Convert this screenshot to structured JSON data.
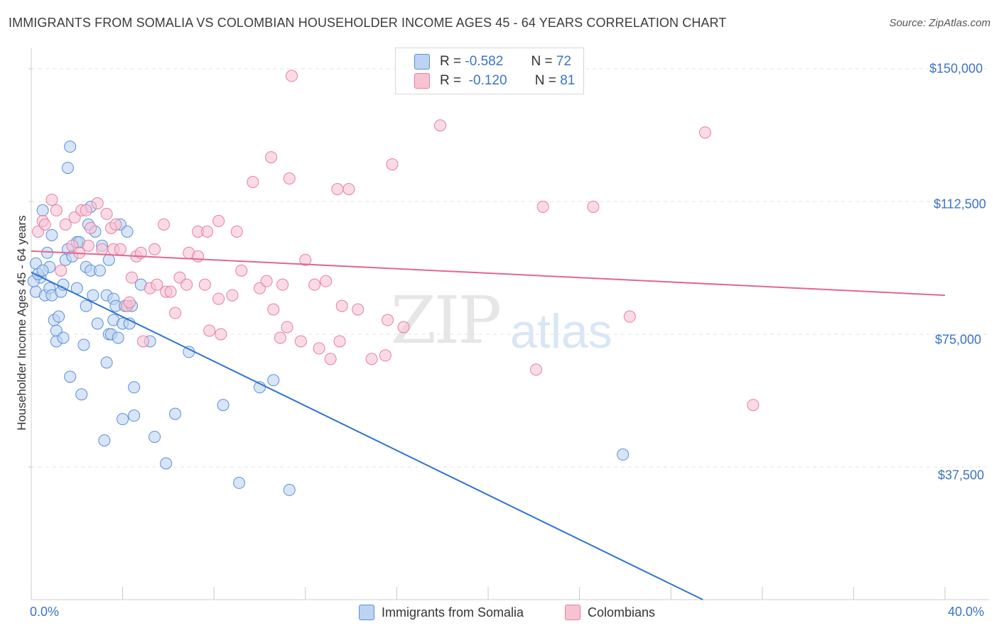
{
  "title": "IMMIGRANTS FROM SOMALIA VS COLOMBIAN HOUSEHOLDER INCOME AGES 45 - 64 YEARS CORRELATION CHART",
  "source": "Source: ZipAtlas.com",
  "watermark": {
    "zip": "ZIP",
    "atlas": "atlas"
  },
  "colors": {
    "somalia": "#5b8fd6",
    "somalia_fill": "#bcd3f2",
    "colombia": "#e57fa0",
    "colombia_fill": "#f7c3d3",
    "somalia_line": "#3173d1",
    "colombia_line": "#e26790",
    "accent": "#3b73c8"
  },
  "legend": {
    "rows": [
      {
        "r_label": "R =",
        "r_value": "-0.582",
        "n_label": "N =",
        "n_value": "72"
      },
      {
        "r_label": "R =",
        "r_value": "-0.120",
        "n_label": "N =",
        "n_value": "81"
      }
    ]
  },
  "bottom_legend": [
    {
      "label": "Immigrants from Somalia"
    },
    {
      "label": "Colombians"
    }
  ],
  "chart_data": {
    "type": "scatter",
    "title": "IMMIGRANTS FROM SOMALIA VS COLOMBIAN HOUSEHOLDER INCOME AGES 45 - 64 YEARS CORRELATION CHART",
    "xlabel": "",
    "ylabel": "Householder Income Ages 45 - 64 years",
    "xlim": [
      0,
      40
    ],
    "ylim": [
      0,
      155000
    ],
    "x_tick_labels": [
      "0.0%",
      "40.0%"
    ],
    "y_ticks": [
      37500,
      75000,
      112500,
      150000
    ],
    "y_tick_labels": [
      "$37,500",
      "$75,000",
      "$112,500",
      "$150,000"
    ],
    "grid": true,
    "legend_position": "top-center",
    "series": [
      {
        "name": "Immigrants from Somalia",
        "trend": {
          "x": [
            0,
            29.4
          ],
          "y": [
            92500,
            0
          ]
        },
        "points": [
          [
            0.2,
            95000
          ],
          [
            0.2,
            87000
          ],
          [
            0.4,
            91000
          ],
          [
            0.5,
            110000
          ],
          [
            0.6,
            86000
          ],
          [
            0.7,
            98000
          ],
          [
            0.8,
            94000
          ],
          [
            0.8,
            88000
          ],
          [
            0.9,
            103000
          ],
          [
            0.9,
            86000
          ],
          [
            1.0,
            79000
          ],
          [
            1.1,
            76000
          ],
          [
            1.2,
            80000
          ],
          [
            1.1,
            73000
          ],
          [
            1.3,
            87000
          ],
          [
            1.4,
            74000
          ],
          [
            1.4,
            89000
          ],
          [
            1.5,
            96000
          ],
          [
            1.6,
            99000
          ],
          [
            1.7,
            128000
          ],
          [
            1.6,
            122000
          ],
          [
            1.7,
            63000
          ],
          [
            1.8,
            97000
          ],
          [
            2.0,
            101000
          ],
          [
            2.0,
            88000
          ],
          [
            2.1,
            101000
          ],
          [
            2.2,
            58000
          ],
          [
            2.3,
            72000
          ],
          [
            2.4,
            83000
          ],
          [
            2.4,
            94000
          ],
          [
            2.5,
            106000
          ],
          [
            2.6,
            111000
          ],
          [
            2.6,
            93000
          ],
          [
            2.7,
            86000
          ],
          [
            2.8,
            104000
          ],
          [
            2.9,
            78000
          ],
          [
            3.0,
            93000
          ],
          [
            3.1,
            100000
          ],
          [
            3.2,
            45000
          ],
          [
            3.3,
            86000
          ],
          [
            3.3,
            67000
          ],
          [
            3.4,
            96000
          ],
          [
            3.4,
            75000
          ],
          [
            3.5,
            75000
          ],
          [
            3.6,
            85000
          ],
          [
            3.6,
            79000
          ],
          [
            3.7,
            83000
          ],
          [
            3.8,
            74000
          ],
          [
            3.9,
            106000
          ],
          [
            4.0,
            78000
          ],
          [
            4.0,
            51000
          ],
          [
            4.1,
            83000
          ],
          [
            4.2,
            104000
          ],
          [
            4.3,
            78000
          ],
          [
            4.4,
            83000
          ],
          [
            4.5,
            52000
          ],
          [
            4.5,
            60000
          ],
          [
            4.8,
            89000
          ],
          [
            5.2,
            73000
          ],
          [
            5.4,
            46000
          ],
          [
            5.9,
            38500
          ],
          [
            6.3,
            52500
          ],
          [
            6.9,
            70000
          ],
          [
            8.4,
            55000
          ],
          [
            9.1,
            33000
          ],
          [
            10.0,
            60000
          ],
          [
            10.6,
            62000
          ],
          [
            11.3,
            31000
          ],
          [
            25.9,
            41000
          ],
          [
            0.1,
            90000
          ],
          [
            0.3,
            92000
          ],
          [
            0.5,
            93000
          ]
        ]
      },
      {
        "name": "Colombians",
        "trend": {
          "x": [
            0,
            40
          ],
          "y": [
            98500,
            86000
          ]
        },
        "points": [
          [
            0.3,
            104000
          ],
          [
            0.5,
            107000
          ],
          [
            0.6,
            106000
          ],
          [
            0.9,
            113000
          ],
          [
            1.1,
            110000
          ],
          [
            1.3,
            93000
          ],
          [
            1.5,
            106000
          ],
          [
            1.8,
            100000
          ],
          [
            1.9,
            108000
          ],
          [
            2.1,
            98000
          ],
          [
            2.2,
            110000
          ],
          [
            2.4,
            110000
          ],
          [
            2.5,
            100000
          ],
          [
            2.6,
            105000
          ],
          [
            2.9,
            112000
          ],
          [
            3.1,
            99000
          ],
          [
            3.3,
            109000
          ],
          [
            3.5,
            105000
          ],
          [
            3.6,
            99000
          ],
          [
            3.7,
            106000
          ],
          [
            3.9,
            99000
          ],
          [
            4.2,
            83000
          ],
          [
            4.3,
            84000
          ],
          [
            4.4,
            91000
          ],
          [
            4.6,
            97000
          ],
          [
            4.8,
            98000
          ],
          [
            4.9,
            73000
          ],
          [
            5.2,
            88000
          ],
          [
            5.4,
            99000
          ],
          [
            5.5,
            89000
          ],
          [
            5.8,
            106000
          ],
          [
            5.9,
            87000
          ],
          [
            6.1,
            87000
          ],
          [
            6.3,
            81000
          ],
          [
            6.5,
            91000
          ],
          [
            6.8,
            89000
          ],
          [
            6.9,
            98000
          ],
          [
            7.3,
            97000
          ],
          [
            7.3,
            104000
          ],
          [
            7.6,
            89000
          ],
          [
            7.7,
            104000
          ],
          [
            7.8,
            76000
          ],
          [
            8.2,
            85000
          ],
          [
            8.2,
            107000
          ],
          [
            8.3,
            75000
          ],
          [
            8.8,
            86000
          ],
          [
            9.0,
            104000
          ],
          [
            9.2,
            93000
          ],
          [
            9.7,
            118000
          ],
          [
            10.0,
            88000
          ],
          [
            10.3,
            90000
          ],
          [
            10.5,
            125000
          ],
          [
            10.6,
            82000
          ],
          [
            10.9,
            74000
          ],
          [
            11.0,
            89000
          ],
          [
            11.2,
            77000
          ],
          [
            11.3,
            119000
          ],
          [
            11.4,
            148000
          ],
          [
            11.8,
            73000
          ],
          [
            12.0,
            96000
          ],
          [
            12.4,
            89000
          ],
          [
            12.6,
            71000
          ],
          [
            12.9,
            90000
          ],
          [
            13.1,
            68000
          ],
          [
            13.4,
            116000
          ],
          [
            13.5,
            73000
          ],
          [
            13.6,
            83000
          ],
          [
            13.9,
            116000
          ],
          [
            14.3,
            82000
          ],
          [
            14.9,
            68000
          ],
          [
            15.5,
            69000
          ],
          [
            15.6,
            79000
          ],
          [
            15.8,
            123000
          ],
          [
            16.3,
            77000
          ],
          [
            17.9,
            134000
          ],
          [
            22.1,
            65000
          ],
          [
            22.4,
            111000
          ],
          [
            24.6,
            111000
          ],
          [
            26.2,
            80000
          ],
          [
            29.5,
            132000
          ],
          [
            31.6,
            55000
          ]
        ]
      }
    ]
  }
}
